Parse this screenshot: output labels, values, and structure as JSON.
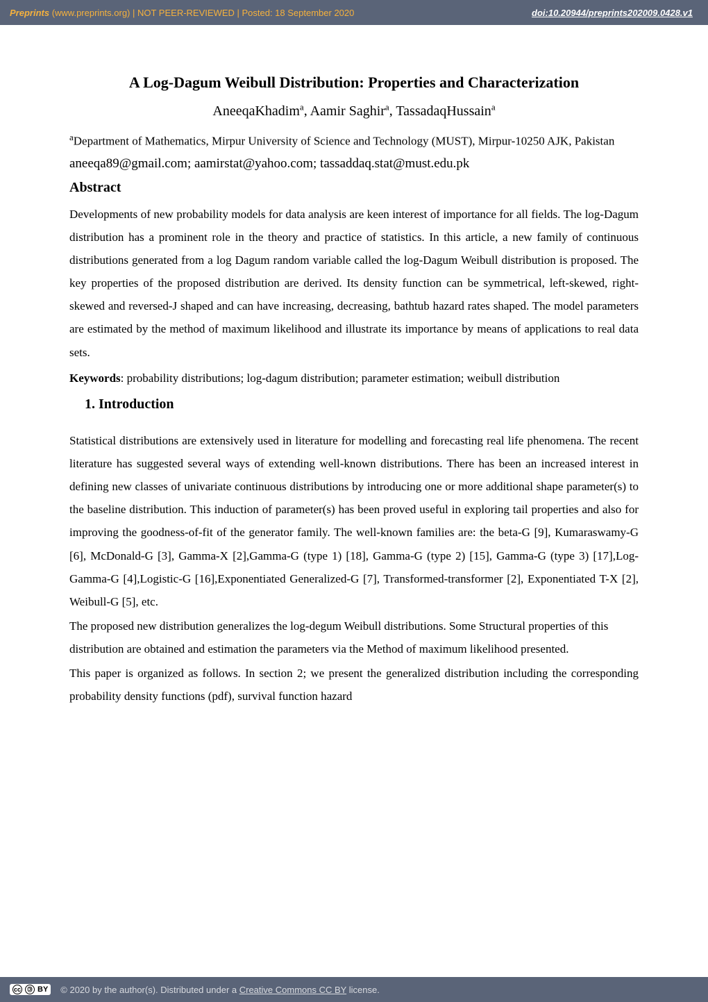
{
  "banner": {
    "site_italic": "Preprints",
    "site_rest": " (www.preprints.org)  |  NOT PEER-REVIEWED  |  Posted: 18 September 2020",
    "doi_label": "doi:10.20944/preprints202009.0428.v1",
    "bg_color": "#5a6478",
    "accent_color": "#f5b13d"
  },
  "paper": {
    "title": "A Log-Dagum Weibull Distribution: Properties and Characterization",
    "authors_html": "AneeqaKhadimᵃ, Aamir Saghirᵃ, TassadaqHussainᵃ",
    "authors": [
      {
        "name": "AneeqaKhadim",
        "aff_mark": "a"
      },
      {
        "name": "Aamir Saghir",
        "aff_mark": "a"
      },
      {
        "name": "TassadaqHussain",
        "aff_mark": "a"
      }
    ],
    "affiliation_mark": "a",
    "affiliation": "Department of Mathematics, Mirpur University of Science and Technology (MUST), Mirpur-10250 AJK, Pakistan",
    "emails": "aneeqa89@gmail.com; aamirstat@yahoo.com; tassaddaq.stat@must.edu.pk",
    "abstract_heading": "Abstract",
    "abstract_body": "Developments of new probability models for data analysis are keen interest of importance for all fields. The log-Dagum distribution has a prominent role in the theory and practice of statistics. In this article, a new family of continuous distributions generated from a log Dagum random variable called the log-Dagum Weibull distribution is proposed. The key properties of the proposed distribution are derived. Its density function can be symmetrical, left-skewed, right-skewed and reversed-J shaped and can have increasing, decreasing, bathtub hazard rates shaped. The model parameters are estimated by the method of maximum likelihood and illustrate its importance by means of applications to real data sets.",
    "keywords_label": "Keywords",
    "keywords_text": ": probability distributions; log-dagum distribution; parameter estimation; weibull distribution",
    "section1_heading": "1.  Introduction",
    "intro_p1": "Statistical distributions are extensively used in literature for modelling and forecasting real life phenomena. The recent literature has suggested several ways of extending well-known distributions. There has been an increased interest in defining new classes of univariate continuous distributions by introducing one or more additional shape parameter(s) to the baseline distribution. This induction of parameter(s) has been proved useful in exploring tail properties and also for improving the goodness-of-fit of the generator family. The well-known families are: the beta-G [9], Kumaraswamy-G  [6], McDonald-G [3], Gamma-X [2],Gamma-G (type 1) [18], Gamma-G (type 2) [15], Gamma-G (type 3) [17],Log-Gamma-G [4],Logistic-G [16],Exponentiated Generalized-G [7], Transformed-transformer [2], Exponentiated T-X [2],  Weibull-G [5], etc.",
    "intro_p2": "The proposed new distribution generalizes the log-degum Weibull distributions. Some Structural properties of this distribution are obtained and estimation the parameters via the Method of maximum likelihood presented.",
    "intro_p3": "This paper is organized as follows. In section 2; we present the generalized distribution including the corresponding probability density functions (pdf), survival function hazard"
  },
  "footer": {
    "cc_symbol": "cc",
    "by_symbol": "BY",
    "text_prefix": "©  2020 by the author(s). Distributed under a ",
    "license_link_text": "Creative Commons CC BY",
    "text_suffix": " license."
  }
}
